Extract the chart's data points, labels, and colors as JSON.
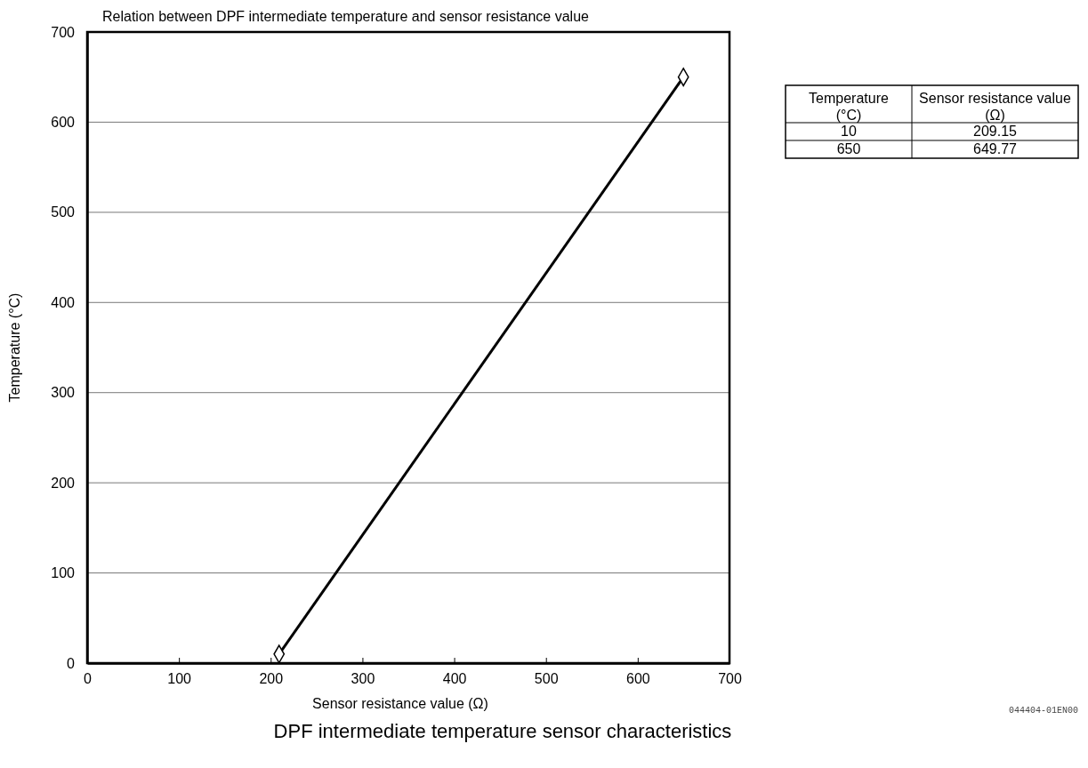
{
  "chart_data": [
    {
      "type": "line",
      "title": "Relation between DPF intermediate temperature and sensor resistance value",
      "xlabel": "Sensor resistance value (Ω)",
      "ylabel": "Temperature (°C)",
      "x": [
        209.15,
        649.77
      ],
      "series": [
        {
          "color": "#000000",
          "values": [
            10,
            650
          ]
        }
      ],
      "xlim": [
        0,
        700
      ],
      "xticks": [
        0,
        100,
        200,
        300,
        400,
        500,
        600,
        700
      ],
      "ylim": [
        0,
        700
      ],
      "yticks": [
        0,
        100,
        200,
        300,
        400,
        500,
        600,
        700
      ],
      "grid": "y",
      "marker": "diamond",
      "line_style": "solid",
      "annotations": [
        "DPF intermediate temperature sensor characteristics",
        "044404-01EN00"
      ]
    },
    {
      "type": "other",
      "annotations": [
        "Temperature (°C)",
        "Sensor resistance value (Ω)",
        "10",
        "209.15",
        "650",
        "649.77"
      ]
    }
  ]
}
